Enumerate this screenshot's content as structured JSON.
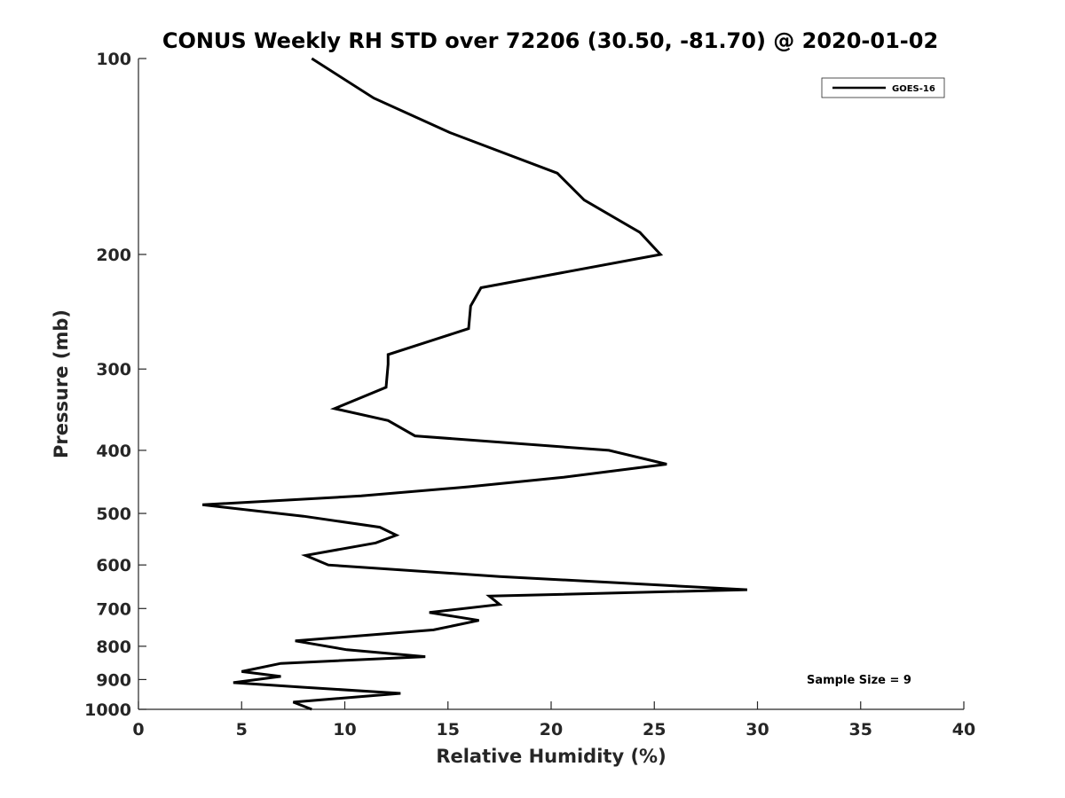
{
  "chart_data": {
    "type": "line",
    "title": "CONUS Weekly RH STD over 72206 (30.50, -81.70) @ 2020-01-02",
    "xlabel": "Relative Humidity (%)",
    "ylabel": "Pressure (mb)",
    "xlim": [
      0,
      40
    ],
    "ylim": [
      100,
      1000
    ],
    "y_scale": "log",
    "y_reversed": true,
    "grid": false,
    "legend_position": "top-right",
    "x_ticks": [
      0,
      5,
      10,
      15,
      20,
      25,
      30,
      35,
      40
    ],
    "x_tick_labels": [
      "0",
      "5",
      "10",
      "15",
      "20",
      "25",
      "30",
      "35",
      "40"
    ],
    "y_ticks": [
      100,
      200,
      300,
      400,
      500,
      600,
      700,
      800,
      900,
      1000
    ],
    "y_tick_labels": [
      "100",
      "200",
      "300",
      "400",
      "500",
      "600",
      "700",
      "800",
      "900",
      "1000"
    ],
    "series": [
      {
        "name": "GOES-16",
        "color": "#000000",
        "x": [
          8.4,
          11.4,
          15.1,
          20.3,
          21.6,
          24.3,
          25.3,
          16.6,
          16.1,
          16.0,
          12.1,
          12.1,
          12.0,
          9.5,
          12.1,
          13.4,
          22.8,
          25.6,
          20.6,
          16.0,
          10.8,
          3.1,
          8.0,
          11.7,
          12.5,
          11.5,
          8.1,
          9.2,
          17.5,
          29.5,
          17.0,
          17.5,
          14.1,
          16.5,
          14.3,
          7.6,
          10.1,
          13.9,
          6.9,
          5.0,
          6.9,
          4.6,
          8.0,
          12.7,
          7.5,
          8.4
        ],
        "y": [
          100,
          115,
          130,
          150,
          165,
          185,
          200,
          225,
          240,
          260,
          285,
          295,
          320,
          345,
          360,
          380,
          400,
          420,
          440,
          455,
          470,
          485,
          505,
          525,
          540,
          555,
          580,
          600,
          625,
          655,
          670,
          690,
          710,
          730,
          755,
          785,
          810,
          830,
          850,
          875,
          890,
          910,
          925,
          945,
          975,
          1000
        ]
      }
    ],
    "annotations": [
      "Sample Size = 9"
    ]
  }
}
